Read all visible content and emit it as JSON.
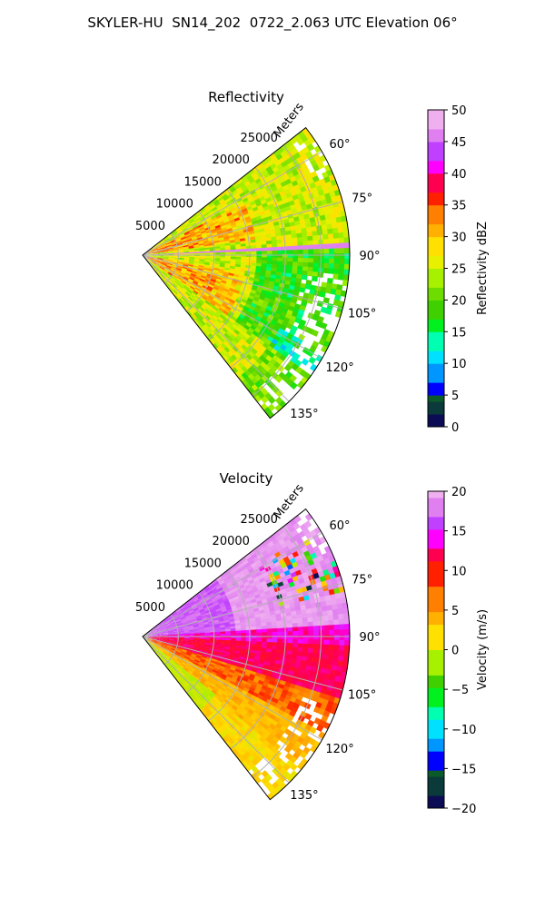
{
  "figure": {
    "title": "SKYLER-HU  SN14_202  0722_2.063 UTC Elevation 06°"
  },
  "chart_data": [
    {
      "type": "heatmap",
      "projection": "polar-sector",
      "title": "Reflectivity",
      "range_axis_label": "Meters",
      "range_ticks": [
        5000,
        10000,
        15000,
        20000,
        25000
      ],
      "range_tick_labels": [
        "5000",
        "10000",
        "15000",
        "20000",
        "25000"
      ],
      "azimuth_ticks": [
        60,
        75,
        90,
        105,
        120,
        135
      ],
      "azimuth_tick_labels": [
        "60°",
        "75°",
        "90°",
        "105°",
        "120°",
        "135°"
      ],
      "azimuth_range": [
        52,
        142
      ],
      "range_max": 29000,
      "grid": true,
      "colorbar": {
        "label": "Reflectivity dBZ",
        "range": [
          0,
          50
        ],
        "ticks": [
          0,
          5,
          10,
          15,
          20,
          25,
          30,
          35,
          40,
          45,
          50
        ],
        "tick_labels": [
          "0",
          "5",
          "10",
          "15",
          "20",
          "25",
          "30",
          "35",
          "40",
          "45",
          "50"
        ]
      },
      "field_description": "Mostly 20-30 dBZ echoes, strongest (30-40 dBZ) near the radar along 65-80° and 105-125°; weaker 15-22 dBZ far range beyond 20000 m; gaps near 90-120° at far range."
    },
    {
      "type": "heatmap",
      "projection": "polar-sector",
      "title": "Velocity",
      "range_axis_label": "Meters",
      "range_ticks": [
        5000,
        10000,
        15000,
        20000,
        25000
      ],
      "range_tick_labels": [
        "5000",
        "10000",
        "15000",
        "20000",
        "25000"
      ],
      "azimuth_ticks": [
        60,
        75,
        90,
        105,
        120,
        135
      ],
      "azimuth_tick_labels": [
        "60°",
        "75°",
        "90°",
        "105°",
        "120°",
        "135°"
      ],
      "azimuth_range": [
        52,
        142
      ],
      "range_max": 29000,
      "grid": true,
      "colorbar": {
        "label": "Velocity (m/s)",
        "range": [
          -20,
          20
        ],
        "ticks": [
          -20,
          -15,
          -10,
          -5,
          0,
          5,
          10,
          15,
          20
        ],
        "tick_labels": [
          "−20",
          "−15",
          "−10",
          "−5",
          "0",
          "5",
          "10",
          "15",
          "20"
        ]
      },
      "field_description": "Inbound-positive 12-18 m/s (magenta) for azimuths < 90°, folding noise near 60-75° far range; 8-12 m/s (red) at 90-110°; 0-5 m/s (yellow/orange) at 110-135°; near -3 m/s (green) close to radar at 125-140°."
    }
  ],
  "colors": {
    "reflectivity_stops": [
      [
        0,
        "#0b0c55"
      ],
      [
        2,
        "#0b3a3a"
      ],
      [
        4,
        "#0b5a2a"
      ],
      [
        5,
        "#0000ff"
      ],
      [
        7.5,
        "#0096ff"
      ],
      [
        10,
        "#00e0ff"
      ],
      [
        12.5,
        "#00ffb0"
      ],
      [
        15,
        "#00f020"
      ],
      [
        17.5,
        "#40d000"
      ],
      [
        20,
        "#6fdc00"
      ],
      [
        22.5,
        "#a6f000"
      ],
      [
        25,
        "#e8f000"
      ],
      [
        27.5,
        "#ffe000"
      ],
      [
        30,
        "#ffb000"
      ],
      [
        32.5,
        "#ff8000"
      ],
      [
        35,
        "#ff2000"
      ],
      [
        37.5,
        "#ff0050"
      ],
      [
        40,
        "#ff00ff"
      ],
      [
        42.5,
        "#c040ff"
      ],
      [
        45,
        "#e080f0"
      ],
      [
        47.5,
        "#f0b0f0"
      ],
      [
        50,
        "#fff0ff"
      ]
    ],
    "velocity_stops": [
      [
        -20,
        "#0b0c55"
      ],
      [
        -18,
        "#0b3a3a"
      ],
      [
        -16,
        "#0b5a2a"
      ],
      [
        -15,
        "#0000ff"
      ],
      [
        -13,
        "#0096ff"
      ],
      [
        -11,
        "#00e0ff"
      ],
      [
        -9,
        "#00ffb0"
      ],
      [
        -7,
        "#00f020"
      ],
      [
        -5,
        "#40d000"
      ],
      [
        -3,
        "#a6f000"
      ],
      [
        0,
        "#ffe000"
      ],
      [
        3,
        "#ffb000"
      ],
      [
        5,
        "#ff8000"
      ],
      [
        8,
        "#ff2000"
      ],
      [
        11,
        "#ff0050"
      ],
      [
        13,
        "#ff00ff"
      ],
      [
        15,
        "#c040ff"
      ],
      [
        17,
        "#e080f0"
      ],
      [
        19,
        "#f0b0f0"
      ],
      [
        20,
        "#fff0ff"
      ]
    ]
  }
}
